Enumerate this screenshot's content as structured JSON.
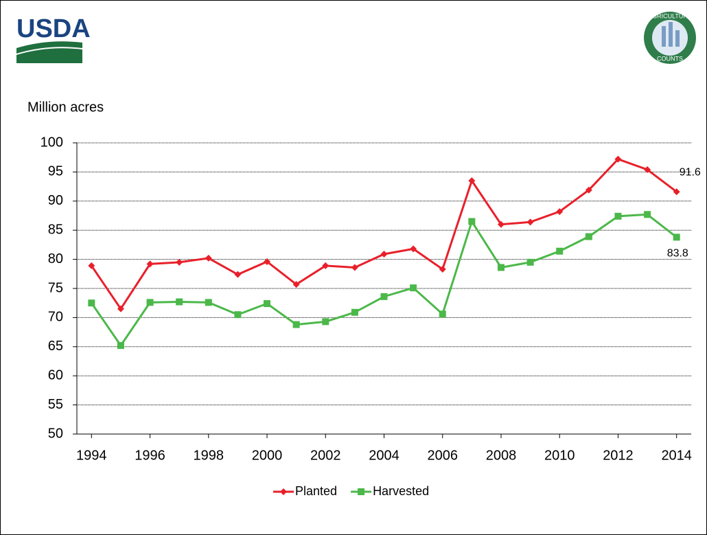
{
  "logo": {
    "agency": "USDA",
    "badge_top": "AGRICULTURE",
    "badge_bottom": "COUNTS"
  },
  "chart_data": {
    "type": "line",
    "ylabel": "Million acres",
    "x": [
      1994,
      1995,
      1996,
      1997,
      1998,
      1999,
      2000,
      2001,
      2002,
      2003,
      2004,
      2005,
      2006,
      2007,
      2008,
      2009,
      2010,
      2011,
      2012,
      2013,
      2014
    ],
    "xlim": [
      1993.5,
      2014.5
    ],
    "xticks": [
      1994,
      1996,
      1998,
      2000,
      2002,
      2004,
      2006,
      2008,
      2010,
      2012,
      2014
    ],
    "ylim": [
      50,
      100
    ],
    "yticks": [
      50,
      55,
      60,
      65,
      70,
      75,
      80,
      85,
      90,
      95,
      100
    ],
    "grid": true,
    "legend": "bottom",
    "series": [
      {
        "name": "Planted",
        "color": "#e8202a",
        "marker": "diamond",
        "values": [
          78.9,
          71.5,
          79.2,
          79.5,
          80.2,
          77.4,
          79.6,
          75.7,
          78.9,
          78.6,
          80.9,
          81.8,
          78.3,
          93.5,
          86.0,
          86.4,
          88.2,
          91.9,
          97.2,
          95.4,
          91.6
        ]
      },
      {
        "name": "Harvested",
        "color": "#4bb849",
        "marker": "square",
        "values": [
          72.5,
          65.2,
          72.6,
          72.7,
          72.6,
          70.5,
          72.4,
          68.8,
          69.3,
          70.9,
          73.6,
          75.1,
          70.6,
          86.5,
          78.6,
          79.5,
          81.4,
          83.9,
          87.4,
          87.7,
          83.8
        ]
      }
    ]
  }
}
